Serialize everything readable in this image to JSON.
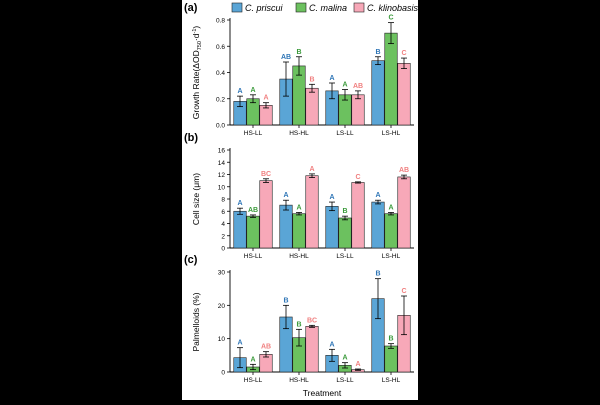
{
  "legend": {
    "entries": [
      {
        "name": "C. priscui",
        "color": "#5aa5d6"
      },
      {
        "name": "C. malina",
        "color": "#6cc15f"
      },
      {
        "name": "C. klinobasis",
        "color": "#f7a8b8"
      }
    ]
  },
  "label_colors": [
    "#2e75b6",
    "#3a9a3a",
    "#f08080"
  ],
  "xlabel_common": "Treatment",
  "chart_data": [
    {
      "type": "bar",
      "panel_label": "(a)",
      "ylabel": "Growth Rate(ΔOD",
      "ylabel_sub": "750",
      "ylabel_tail": "·d",
      "ylabel_sup": "-1",
      "ylabel_close": ")",
      "ylim": [
        0,
        0.8
      ],
      "yticks": [
        0.0,
        0.2,
        0.4,
        0.6,
        0.8
      ],
      "ytick_labels": [
        "0.0",
        "0.2",
        "0.4",
        "0.6",
        "0.8"
      ],
      "categories": [
        "HS-LL",
        "HS-HL",
        "LS-LL",
        "LS-HL"
      ],
      "series": [
        {
          "name": "C. priscui",
          "values": [
            0.18,
            0.35,
            0.26,
            0.49
          ],
          "errors": [
            0.04,
            0.13,
            0.06,
            0.03
          ],
          "letters": [
            "A",
            "AB",
            "A",
            "B"
          ]
        },
        {
          "name": "C. malina",
          "values": [
            0.2,
            0.45,
            0.23,
            0.7
          ],
          "errors": [
            0.03,
            0.07,
            0.04,
            0.08
          ],
          "letters": [
            "A",
            "B",
            "A",
            "C"
          ]
        },
        {
          "name": "C. klinobasis",
          "values": [
            0.15,
            0.28,
            0.23,
            0.47
          ],
          "errors": [
            0.02,
            0.03,
            0.03,
            0.04
          ],
          "letters": [
            "A",
            "B",
            "AB",
            "C"
          ]
        }
      ]
    },
    {
      "type": "bar",
      "panel_label": "(b)",
      "ylabel": "Cell size (μm)",
      "ylim": [
        0,
        16
      ],
      "yticks": [
        0,
        2,
        4,
        6,
        8,
        10,
        12,
        14,
        16
      ],
      "ytick_labels": [
        "0",
        "2",
        "4",
        "6",
        "8",
        "10",
        "12",
        "14",
        "16"
      ],
      "categories": [
        "HS-LL",
        "HS-HL",
        "LS-LL",
        "LS-HL"
      ],
      "series": [
        {
          "name": "C. priscui",
          "values": [
            6.0,
            7.0,
            6.8,
            7.5
          ],
          "errors": [
            0.5,
            0.8,
            0.7,
            0.3
          ],
          "letters": [
            "A",
            "A",
            "A",
            "A"
          ]
        },
        {
          "name": "C. malina",
          "values": [
            5.2,
            5.6,
            4.9,
            5.6
          ],
          "errors": [
            0.2,
            0.2,
            0.3,
            0.2
          ],
          "letters": [
            "AB",
            "A",
            "B",
            "A"
          ]
        },
        {
          "name": "C. klinobasis",
          "values": [
            11.0,
            11.8,
            10.7,
            11.6
          ],
          "errors": [
            0.3,
            0.3,
            0.1,
            0.3
          ],
          "letters": [
            "BC",
            "A",
            "C",
            "AB"
          ]
        }
      ]
    },
    {
      "type": "bar",
      "panel_label": "(c)",
      "ylabel": "Palmelloids (%)",
      "ylim": [
        0,
        30
      ],
      "yticks": [
        0,
        10,
        20,
        30
      ],
      "ytick_labels": [
        "0",
        "10",
        "20",
        "30"
      ],
      "categories": [
        "HS-LL",
        "HS-HL",
        "LS-LL",
        "LS-HL"
      ],
      "series": [
        {
          "name": "C. priscui",
          "values": [
            4.3,
            16.5,
            5.0,
            22.0
          ],
          "errors": [
            3.0,
            3.5,
            1.8,
            6.0
          ],
          "letters": [
            "A",
            "B",
            "A",
            "B"
          ]
        },
        {
          "name": "C. malina",
          "values": [
            1.5,
            10.3,
            2.0,
            7.8
          ],
          "errors": [
            0.8,
            2.5,
            0.8,
            0.7
          ],
          "letters": [
            "A",
            "B",
            "A",
            "B"
          ]
        },
        {
          "name": "C. klinobasis",
          "values": [
            5.3,
            13.7,
            0.7,
            17.0
          ],
          "errors": [
            0.8,
            0.3,
            0.2,
            5.8
          ],
          "letters": [
            "AB",
            "BC",
            "A",
            "C"
          ]
        }
      ]
    }
  ]
}
